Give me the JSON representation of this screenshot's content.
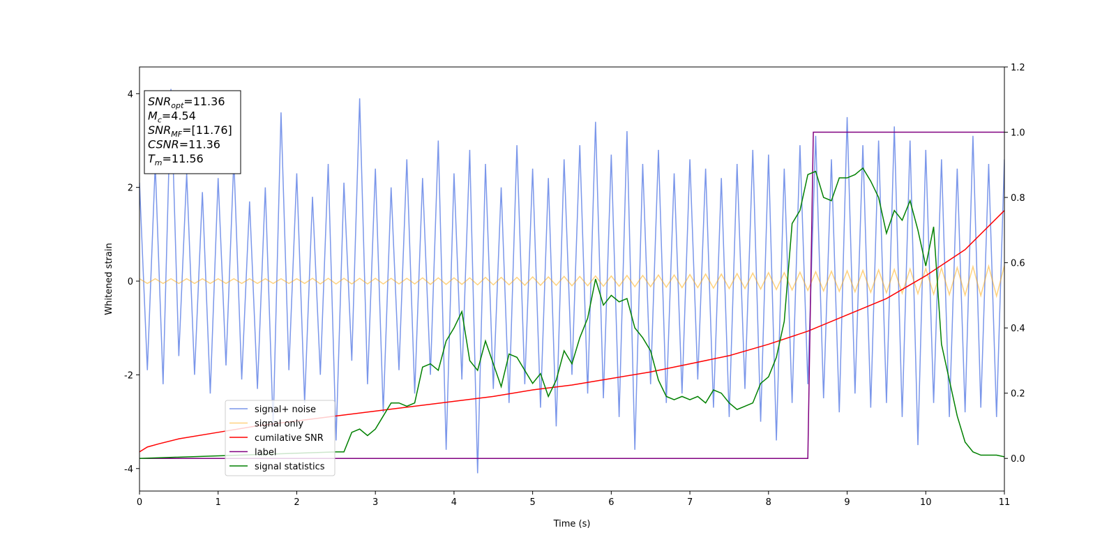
{
  "chart_data": {
    "type": "line",
    "xlabel": "Time (s)",
    "ylabel": "Whitened strain",
    "xlim": [
      0,
      11
    ],
    "xticks": [
      0,
      1,
      2,
      3,
      4,
      5,
      6,
      7,
      8,
      9,
      10,
      11
    ],
    "ylim": [
      -4.48,
      4.57
    ],
    "yticks": [
      -4,
      -2,
      0,
      2,
      4
    ],
    "y2lim": [
      -0.1,
      1.2
    ],
    "y2ticks": [
      {
        "value": 0,
        "label": "0.0"
      },
      0.2,
      0.4,
      0.6,
      0.8,
      {
        "value": 1,
        "label": "1.0"
      },
      1.2
    ],
    "annotation": [
      {
        "var": "SNR",
        "sub": "opt",
        "eq": "=11.36"
      },
      {
        "var": "M",
        "sub": "c",
        "eq": "=4.54"
      },
      {
        "var": "SNR",
        "sub": "MF",
        "eq": "=[11.76]"
      },
      {
        "var": "CSNR",
        "eq": "=11.36"
      },
      {
        "var": "T",
        "sub": "m",
        "eq": "=11.56"
      }
    ],
    "x": [
      0,
      0.1,
      0.2,
      0.3,
      0.4,
      0.5,
      0.6,
      0.7,
      0.8,
      0.9,
      1,
      1.1,
      1.2,
      1.3,
      1.4,
      1.5,
      1.6,
      1.7,
      1.8,
      1.9,
      2,
      2.1,
      2.2,
      2.3,
      2.4,
      2.5,
      2.6,
      2.7,
      2.8,
      2.9,
      3,
      3.1,
      3.2,
      3.3,
      3.4,
      3.5,
      3.6,
      3.7,
      3.8,
      3.9,
      4,
      4.1,
      4.2,
      4.3,
      4.4,
      4.5,
      4.6,
      4.7,
      4.8,
      4.9,
      5,
      5.1,
      5.2,
      5.3,
      5.4,
      5.5,
      5.6,
      5.7,
      5.8,
      5.9,
      6,
      6.1,
      6.2,
      6.3,
      6.4,
      6.5,
      6.6,
      6.7,
      6.8,
      6.9,
      7,
      7.1,
      7.2,
      7.3,
      7.4,
      7.5,
      7.6,
      7.7,
      7.8,
      7.9,
      8,
      8.1,
      8.2,
      8.3,
      8.4,
      8.5,
      8.6,
      8.7,
      8.8,
      8.9,
      9,
      9.1,
      9.2,
      9.3,
      9.4,
      9.5,
      9.6,
      9.7,
      9.8,
      9.9,
      10,
      10.1,
      10.2,
      10.3,
      10.4,
      10.5,
      10.6,
      10.7,
      10.8,
      10.9,
      11
    ],
    "series": [
      {
        "name": "signal+ noise",
        "color": "#4169e1",
        "opacity": 0.7,
        "axis": "y",
        "values": [
          2.1,
          -1.9,
          2.5,
          -2.2,
          4.1,
          -1.6,
          2.3,
          -2.0,
          1.9,
          -2.4,
          2.2,
          -1.8,
          2.6,
          -2.1,
          1.7,
          -2.3,
          2.0,
          -3.1,
          3.6,
          -1.9,
          2.3,
          -2.6,
          1.8,
          -2.0,
          2.5,
          -3.4,
          2.1,
          -1.7,
          3.9,
          -2.2,
          2.4,
          -2.8,
          2.0,
          -1.9,
          2.6,
          -2.4,
          2.2,
          -2.0,
          3.0,
          -3.6,
          2.3,
          -2.1,
          2.8,
          -4.1,
          2.5,
          -2.3,
          2.0,
          -2.6,
          2.9,
          -2.2,
          2.4,
          -2.7,
          2.2,
          -3.1,
          2.6,
          -2.0,
          2.9,
          -2.4,
          3.4,
          -2.5,
          2.7,
          -2.9,
          3.2,
          -3.6,
          2.5,
          -2.2,
          2.8,
          -2.6,
          2.3,
          -2.4,
          2.6,
          -2.1,
          2.4,
          -2.7,
          2.2,
          -2.9,
          2.5,
          -2.3,
          2.8,
          -3.0,
          2.7,
          -3.4,
          2.4,
          -2.6,
          2.9,
          -2.2,
          3.1,
          -2.5,
          2.6,
          -2.8,
          3.5,
          -2.4,
          2.9,
          -2.7,
          3.0,
          -2.6,
          3.3,
          -2.9,
          3.0,
          -3.5,
          2.8,
          -2.6,
          2.6,
          -2.9,
          2.4,
          -2.8,
          3.1,
          -2.7,
          2.5,
          -2.9,
          2.6
        ]
      },
      {
        "name": "signal only",
        "color": "#ffa500",
        "opacity": 0.5,
        "axis": "y",
        "values": [
          0.05,
          -0.05,
          0.05,
          -0.05,
          0.05,
          -0.05,
          0.05,
          -0.05,
          0.05,
          -0.05,
          0.05,
          -0.05,
          0.05,
          -0.05,
          0.05,
          -0.05,
          0.05,
          -0.05,
          0.05,
          -0.05,
          0.05,
          -0.05,
          0.06,
          -0.06,
          0.06,
          -0.06,
          0.06,
          -0.06,
          0.06,
          -0.06,
          0.06,
          -0.06,
          0.06,
          -0.06,
          0.06,
          -0.06,
          0.07,
          -0.07,
          0.07,
          -0.07,
          0.07,
          -0.07,
          0.07,
          -0.08,
          0.08,
          -0.08,
          0.08,
          -0.08,
          0.08,
          -0.09,
          0.09,
          -0.09,
          0.09,
          -0.09,
          0.1,
          -0.1,
          0.1,
          -0.1,
          0.11,
          -0.11,
          0.11,
          -0.11,
          0.12,
          -0.12,
          0.12,
          -0.12,
          0.13,
          -0.13,
          0.13,
          -0.14,
          0.14,
          -0.14,
          0.15,
          -0.15,
          0.15,
          -0.16,
          0.16,
          -0.16,
          0.17,
          -0.17,
          0.18,
          -0.18,
          0.18,
          -0.19,
          0.19,
          -0.2,
          0.2,
          -0.21,
          0.21,
          -0.22,
          0.22,
          -0.23,
          0.23,
          -0.24,
          0.24,
          -0.25,
          0.25,
          -0.26,
          0.26,
          -0.27,
          0.27,
          -0.28,
          0.28,
          -0.29,
          0.29,
          -0.3,
          0.31,
          -0.31,
          0.32,
          -0.32,
          0.33
        ]
      },
      {
        "name": "cumilative SNR",
        "color": "#ff0000",
        "axis": "y2",
        "x": [
          0,
          0.1,
          0.25,
          0.5,
          1,
          1.5,
          2,
          2.5,
          3,
          3.5,
          4,
          4.5,
          5,
          5.5,
          6,
          6.5,
          7,
          7.5,
          8,
          8.5,
          9,
          9.5,
          10,
          10.5,
          11
        ],
        "values": [
          0.02,
          0.035,
          0.045,
          0.06,
          0.08,
          0.1,
          0.115,
          0.13,
          0.145,
          0.16,
          0.175,
          0.19,
          0.21,
          0.225,
          0.245,
          0.265,
          0.29,
          0.315,
          0.35,
          0.39,
          0.44,
          0.49,
          0.56,
          0.64,
          0.76
        ]
      },
      {
        "name": "label",
        "color": "#800080",
        "axis": "y2",
        "x": [
          0,
          8.5,
          8.57,
          11
        ],
        "values": [
          0,
          0,
          1,
          1
        ]
      },
      {
        "name": "signal statistics",
        "color": "#008000",
        "axis": "y2",
        "x": [
          0,
          2.5,
          2.6,
          2.7,
          2.8,
          2.9,
          3,
          3.1,
          3.2,
          3.3,
          3.4,
          3.5,
          3.6,
          3.7,
          3.8,
          3.9,
          4,
          4.1,
          4.2,
          4.3,
          4.4,
          4.5,
          4.6,
          4.7,
          4.8,
          4.9,
          5,
          5.1,
          5.2,
          5.3,
          5.4,
          5.5,
          5.6,
          5.7,
          5.8,
          5.9,
          6,
          6.1,
          6.2,
          6.3,
          6.4,
          6.5,
          6.6,
          6.7,
          6.8,
          6.9,
          7,
          7.1,
          7.2,
          7.3,
          7.4,
          7.5,
          7.6,
          7.7,
          7.8,
          7.9,
          8,
          8.1,
          8.2,
          8.3,
          8.4,
          8.5,
          8.6,
          8.7,
          8.8,
          8.9,
          9,
          9.1,
          9.2,
          9.3,
          9.4,
          9.5,
          9.6,
          9.7,
          9.8,
          9.9,
          10,
          10.1,
          10.2,
          10.3,
          10.4,
          10.5,
          10.6,
          10.7,
          10.8,
          10.9,
          11
        ],
        "values": [
          0,
          0.02,
          0.02,
          0.08,
          0.09,
          0.07,
          0.09,
          0.13,
          0.17,
          0.17,
          0.16,
          0.17,
          0.28,
          0.29,
          0.27,
          0.36,
          0.4,
          0.45,
          0.3,
          0.27,
          0.36,
          0.29,
          0.22,
          0.32,
          0.31,
          0.27,
          0.23,
          0.26,
          0.19,
          0.24,
          0.33,
          0.29,
          0.37,
          0.43,
          0.55,
          0.47,
          0.5,
          0.48,
          0.49,
          0.4,
          0.37,
          0.33,
          0.24,
          0.19,
          0.18,
          0.19,
          0.18,
          0.19,
          0.17,
          0.21,
          0.2,
          0.17,
          0.15,
          0.16,
          0.17,
          0.23,
          0.25,
          0.31,
          0.42,
          0.72,
          0.76,
          0.87,
          0.88,
          0.8,
          0.79,
          0.86,
          0.86,
          0.87,
          0.89,
          0.85,
          0.8,
          0.69,
          0.76,
          0.73,
          0.79,
          0.7,
          0.59,
          0.71,
          0.35,
          0.24,
          0.13,
          0.05,
          0.02,
          0.01,
          0.01,
          0.01,
          0.005
        ]
      }
    ]
  }
}
